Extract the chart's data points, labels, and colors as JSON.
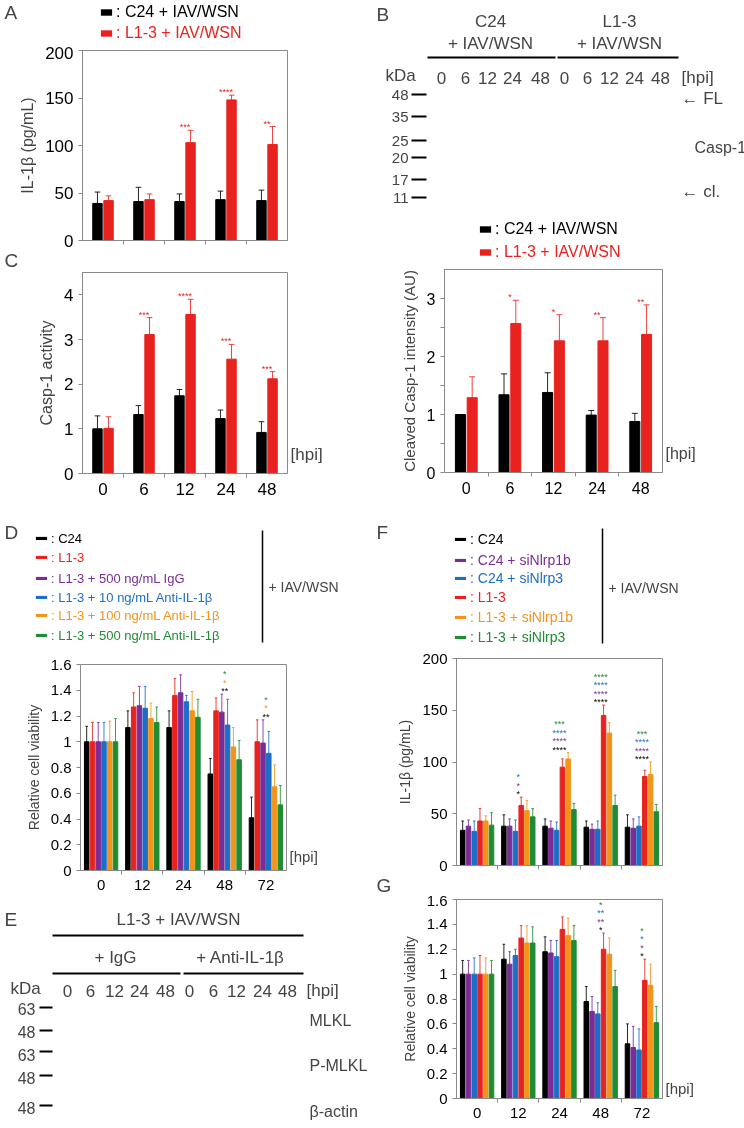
{
  "chart_data": [
    {
      "type": "bar",
      "title": "A",
      "ylabel": "IL-1β (pg/mL)",
      "categories": [
        null,
        null,
        null,
        null,
        null
      ],
      "tick_labels": "y",
      "ylim": [
        0,
        200
      ],
      "yticks": [
        0,
        50,
        100,
        150,
        200
      ],
      "legend": "top",
      "series": [
        {
          "name": ": C24 + IAV/WSN",
          "color": "#000000",
          "values": [
            39,
            41,
            41,
            43,
            42
          ],
          "errors": [
            [
              39,
              51
            ],
            [
              41,
              56
            ],
            [
              41,
              49
            ],
            [
              43,
              52
            ],
            [
              42,
              53
            ]
          ]
        },
        {
          "name": ": L1-3 + IAV/WSN",
          "color": "#e8231f",
          "values": [
            42,
            43,
            103,
            148,
            101
          ],
          "errors": [
            [
              42,
              47
            ],
            [
              43,
              49
            ],
            [
              103,
              116
            ],
            [
              148,
              153
            ],
            [
              101,
              120
            ]
          ]
        }
      ],
      "annotations": [
        "***",
        "****",
        "**"
      ]
    },
    {
      "type": "other",
      "title": "B",
      "annotations": [
        "C24",
        "+ IAV/WSN",
        "L1-3",
        "+ IAV/WSN",
        "kDa",
        "0",
        "6",
        "12",
        "24",
        "48",
        "0",
        "6",
        "12",
        "24",
        "48",
        "[hpi]",
        "48",
        "35",
        "25",
        "20",
        "17",
        "11",
        "← FL",
        "Casp-1",
        "← cl."
      ]
    },
    {
      "type": "bar",
      "title": "C",
      "ylabel": "Casp-1 activity",
      "xlabel": "[hpi]",
      "categories": [
        "0",
        "6",
        "12",
        "24",
        "48"
      ],
      "ylim": [
        0,
        4.5
      ],
      "yticks": [
        0,
        1,
        2,
        3,
        4
      ],
      "series": [
        {
          "color": "#000000",
          "values": [
            1.0,
            1.32,
            1.74,
            1.23,
            0.92
          ],
          "errors": [
            [
              1.0,
              1.29
            ],
            [
              1.32,
              1.52
            ],
            [
              1.74,
              1.88
            ],
            [
              1.23,
              1.42
            ],
            [
              0.92,
              1.16
            ]
          ]
        },
        {
          "color": "#e8231f",
          "values": [
            1.01,
            3.11,
            3.56,
            2.56,
            2.12
          ],
          "errors": [
            [
              1.01,
              1.27
            ],
            [
              3.11,
              3.49
            ],
            [
              3.56,
              3.9
            ],
            [
              2.56,
              2.89
            ],
            [
              2.12,
              2.28
            ]
          ]
        }
      ],
      "annotations": [
        "***",
        "****",
        "***",
        "***"
      ]
    },
    {
      "type": "bar",
      "ylabel": "Cleaved Casp-1 intensity (AU)",
      "xlabel": "[hpi]",
      "categories": [
        "0",
        "6",
        "12",
        "24",
        "48"
      ],
      "ylim": [
        0,
        3.5
      ],
      "yticks": [
        0,
        {
          "value": 0.5,
          "label": null
        },
        1,
        {
          "value": 1.5,
          "label": null
        },
        2,
        {
          "value": 2.5,
          "label": null
        },
        3
      ],
      "legend": "top",
      "series": [
        {
          "name": ": C24 + IAV/WSN",
          "color": "#000000",
          "values": [
            1.0,
            1.34,
            1.38,
            0.99,
            0.88
          ],
          "errors": [
            null,
            [
              1.34,
              1.7
            ],
            [
              1.38,
              1.72
            ],
            [
              0.99,
              1.07
            ],
            [
              0.88,
              1.02
            ]
          ]
        },
        {
          "name": ": L1-3 + IAV/WSN",
          "color": "#e8231f",
          "values": [
            1.29,
            2.57,
            2.27,
            2.27,
            2.38
          ],
          "errors": [
            [
              1.29,
              1.65
            ],
            [
              2.57,
              2.97
            ],
            [
              2.27,
              2.72
            ],
            [
              2.27,
              2.67
            ],
            [
              2.38,
              2.89
            ]
          ]
        }
      ],
      "annotations": [
        "*",
        "*",
        "**",
        "**"
      ]
    },
    {
      "type": "bar",
      "title": "D",
      "ylabel": "Relative cell viability",
      "xlabel": "[hpi]",
      "categories": [
        "0",
        "12",
        "24",
        "48",
        "72"
      ],
      "ylim": [
        0,
        1.6
      ],
      "yticks": [
        0,
        0.2,
        0.4,
        0.6,
        0.8,
        1,
        1.2,
        1.4,
        1.6
      ],
      "legend": "top",
      "series": [
        {
          "name": ": C24",
          "color": "#000000",
          "values": [
            1.0,
            1.11,
            1.11,
            0.75,
            0.41
          ],
          "errors": [
            [
              1.0,
              1.12
            ],
            [
              1.11,
              1.24
            ],
            [
              1.11,
              1.24
            ],
            [
              0.75,
              0.87
            ],
            [
              0.41,
              0.57
            ]
          ]
        },
        {
          "name": ": L1-3",
          "color": "#e8231f",
          "values": [
            1.0,
            1.27,
            1.36,
            1.24,
            1.0
          ],
          "errors": [
            [
              1.0,
              1.15
            ],
            [
              1.27,
              1.38
            ],
            [
              1.36,
              1.49
            ],
            [
              1.24,
              1.34
            ],
            [
              1.0,
              1.17
            ]
          ]
        },
        {
          "name": ": L1-3 + 500 ng/mL IgG",
          "color": "#7b2d96",
          "values": [
            1.0,
            1.28,
            1.38,
            1.23,
            0.99
          ],
          "errors": [
            [
              1.0,
              1.15
            ],
            [
              1.28,
              1.43
            ],
            [
              1.38,
              1.52
            ],
            [
              1.23,
              1.37
            ],
            [
              0.99,
              1.17
            ]
          ]
        },
        {
          "name": ": L1-3 + 10 ng/mL Anti-IL-1β",
          "color": "#1c6ec8",
          "values": [
            1.0,
            1.26,
            1.31,
            1.13,
            0.91
          ],
          "errors": [
            [
              1.0,
              1.15
            ],
            [
              1.26,
              1.43
            ],
            [
              1.31,
              1.36
            ],
            [
              1.13,
              1.33
            ],
            [
              0.91,
              1.08
            ]
          ]
        },
        {
          "name": ": L1-3 + 100 ng/mL Anti-IL-1β",
          "color": "#f39419",
          "values": [
            1.0,
            1.18,
            1.24,
            0.96,
            0.65
          ],
          "errors": [
            [
              1.0,
              1.16
            ],
            [
              1.18,
              1.3
            ],
            [
              1.24,
              1.39
            ],
            [
              0.96,
              1.11
            ],
            [
              0.65,
              0.82
            ]
          ]
        },
        {
          "name": ": L1-3 + 500 ng/mL Anti-IL-1β",
          "color": "#1e8c32",
          "values": [
            1.0,
            1.15,
            1.19,
            0.86,
            0.51
          ],
          "errors": [
            [
              1.0,
              1.18
            ],
            [
              1.15,
              1.27
            ],
            [
              1.19,
              1.33
            ],
            [
              0.86,
              1.01
            ],
            [
              0.51,
              0.66
            ]
          ]
        }
      ],
      "annotations": [
        "+ IAV/WSN",
        "**",
        "*",
        "*",
        "**",
        "*",
        "*"
      ]
    },
    {
      "type": "bar",
      "title": "F",
      "ylabel": "IL-1β (pg/mL)",
      "categories": [
        null,
        null,
        null,
        null,
        null
      ],
      "tick_labels": "y",
      "ylim": [
        0,
        200
      ],
      "yticks": [
        0,
        50,
        100,
        150,
        200
      ],
      "legend": "top",
      "series": [
        {
          "name": ": C24",
          "color": "#000000",
          "values": [
            34,
            38,
            38,
            37,
            37
          ],
          "errors": [
            [
              34,
              43
            ],
            [
              38,
              49
            ],
            [
              38,
              45
            ],
            [
              37,
              43
            ],
            [
              37,
              49
            ]
          ]
        },
        {
          "name": ": C24 + siNlrp1b",
          "color": "#7b2d96",
          "values": [
            38,
            38,
            36,
            35,
            36
          ],
          "errors": [
            [
              38,
              44
            ],
            [
              38,
              45
            ],
            [
              36,
              43
            ],
            [
              35,
              40
            ],
            [
              36,
              45
            ]
          ]
        },
        {
          "name": ": C24 + siNlrp3",
          "color": "#1c6ec8",
          "values": [
            33,
            33,
            34,
            35,
            38
          ],
          "errors": [
            [
              33,
              43
            ],
            [
              33,
              44
            ],
            [
              34,
              42
            ],
            [
              35,
              43
            ],
            [
              38,
              47
            ]
          ]
        },
        {
          "name": ": L1-3",
          "color": "#e8231f",
          "values": [
            43,
            58,
            95,
            145,
            86
          ],
          "errors": [
            [
              43,
              55
            ],
            [
              58,
              66
            ],
            [
              95,
              103
            ],
            [
              145,
              155
            ],
            [
              86,
              92
            ]
          ]
        },
        {
          "name": ": L1-3 + siNlrp1b",
          "color": "#f39419",
          "values": [
            43,
            53,
            103,
            128,
            88
          ],
          "errors": [
            [
              43,
              48
            ],
            [
              53,
              63
            ],
            [
              103,
              109
            ],
            [
              128,
              138
            ],
            [
              88,
              100
            ]
          ]
        },
        {
          "name": ": L1-3 + siNlrp3",
          "color": "#1e8c32",
          "values": [
            39,
            47,
            54,
            58,
            52
          ],
          "errors": [
            [
              39,
              51
            ],
            [
              47,
              55
            ],
            [
              54,
              60
            ],
            [
              58,
              68
            ],
            [
              52,
              59
            ]
          ]
        }
      ],
      "annotations": [
        "+ IAV/WSN",
        "*",
        "*",
        "*",
        "****",
        "****",
        "****",
        "***",
        "****",
        "****",
        "****",
        "****",
        "****",
        "****",
        "****",
        "***"
      ]
    },
    {
      "type": "other",
      "title": "E",
      "annotations": [
        "L1-3 + IAV/WSN",
        "+ IgG",
        "+ Anti-IL-1β",
        "kDa",
        "0",
        "6",
        "12",
        "24",
        "48",
        "0",
        "6",
        "12",
        "24",
        "48",
        "[hpi]",
        "63",
        "48",
        "63",
        "48",
        "48",
        "MLKL",
        "P-MLKL",
        "β-actin"
      ]
    },
    {
      "type": "bar",
      "title": "G",
      "ylabel": "Relative cell viability",
      "xlabel": "[hpi]",
      "categories": [
        "0",
        "12",
        "24",
        "48",
        "72"
      ],
      "ylim": [
        0,
        1.6
      ],
      "yticks": [
        0,
        0.2,
        0.4,
        0.6,
        0.8,
        1,
        1.2,
        1.4,
        1.6
      ],
      "series": [
        {
          "color": "#000000",
          "values": [
            1.0,
            1.12,
            1.18,
            0.78,
            0.44
          ],
          "errors": [
            [
              1.0,
              1.11
            ],
            [
              1.12,
              1.24
            ],
            [
              1.18,
              1.3
            ],
            [
              0.78,
              0.9
            ],
            [
              0.44,
              0.6
            ]
          ]
        },
        {
          "color": "#7b2d96",
          "values": [
            1.0,
            1.08,
            1.17,
            0.7,
            0.41
          ],
          "errors": [
            [
              1.0,
              1.11
            ],
            [
              1.08,
              1.18
            ],
            [
              1.17,
              1.27
            ],
            [
              0.7,
              0.82
            ],
            [
              0.41,
              0.58
            ]
          ]
        },
        {
          "color": "#1c6ec8",
          "values": [
            1.0,
            1.15,
            1.14,
            0.68,
            0.39
          ],
          "errors": [
            [
              1.0,
              1.13
            ],
            [
              1.15,
              1.2
            ],
            [
              1.14,
              1.27
            ],
            [
              0.68,
              0.77
            ],
            [
              0.39,
              0.56
            ]
          ]
        },
        {
          "color": "#e8231f",
          "values": [
            1.0,
            1.29,
            1.36,
            1.2,
            0.95
          ],
          "errors": [
            [
              1.0,
              1.15
            ],
            [
              1.29,
              1.39
            ],
            [
              1.36,
              1.46
            ],
            [
              1.2,
              1.33
            ],
            [
              0.95,
              1.12
            ]
          ]
        },
        {
          "color": "#f39419",
          "values": [
            1.0,
            1.25,
            1.31,
            1.16,
            0.91
          ],
          "errors": [
            [
              1.0,
              1.13
            ],
            [
              1.25,
              1.39
            ],
            [
              1.31,
              1.45
            ],
            [
              1.16,
              1.29
            ],
            [
              0.91,
              1.08
            ]
          ]
        },
        {
          "color": "#1e8c32",
          "values": [
            1.0,
            1.25,
            1.27,
            0.9,
            0.61
          ],
          "errors": [
            [
              1.0,
              1.11
            ],
            [
              1.25,
              1.38
            ],
            [
              1.27,
              1.39
            ],
            [
              0.9,
              1.03
            ],
            [
              0.61,
              0.74
            ]
          ]
        }
      ],
      "annotations": [
        "*",
        "**",
        "**",
        "*",
        "*",
        "*",
        "*",
        "*"
      ]
    }
  ]
}
